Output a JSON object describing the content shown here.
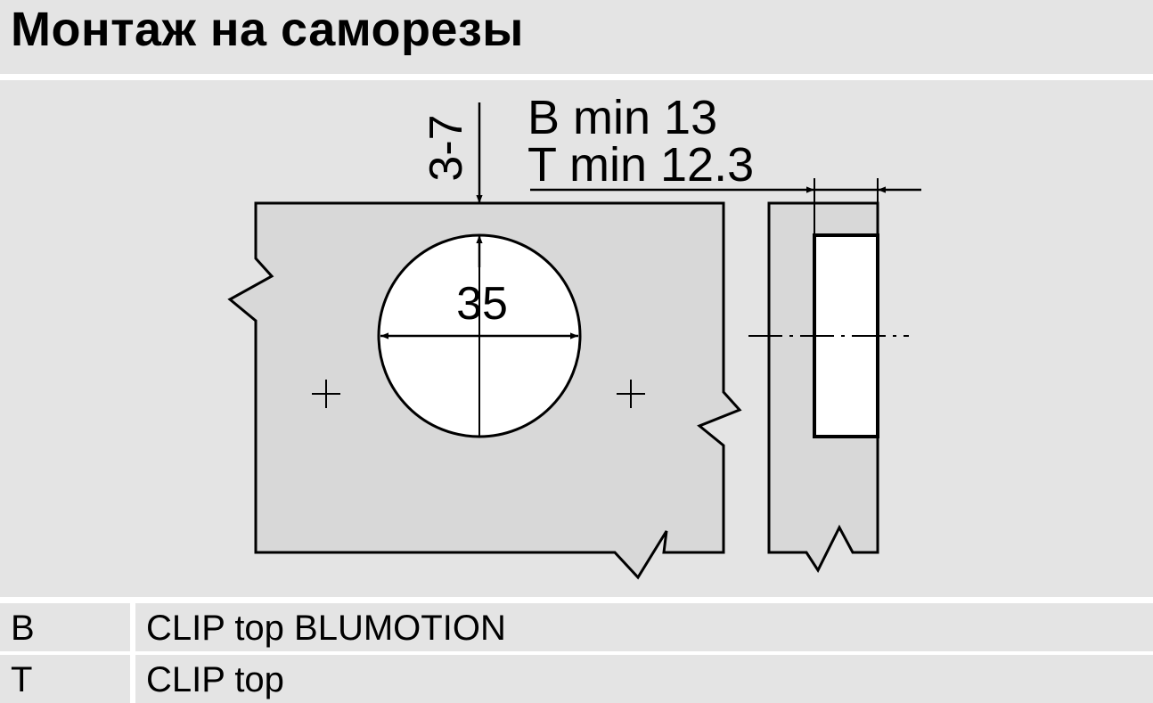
{
  "header": {
    "title": "Монтаж на саморезы"
  },
  "diagram": {
    "dim_offset": "3-7",
    "dim_b": "B min 13",
    "dim_t": "T min 12.3",
    "dim_diameter": "35"
  },
  "legend": [
    {
      "key": "B",
      "value": "CLIP top BLUMOTION"
    },
    {
      "key": "T",
      "value": "CLIP top"
    }
  ]
}
